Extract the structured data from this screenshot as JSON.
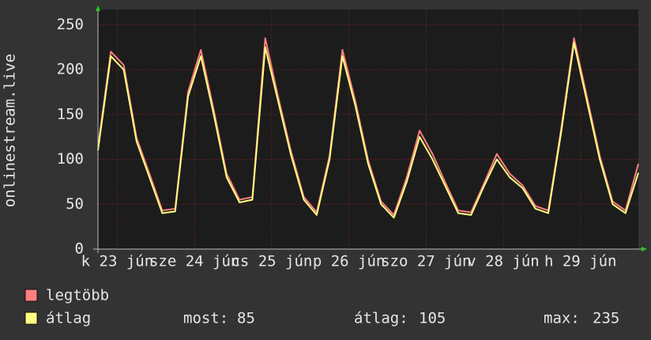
{
  "chart_data": {
    "type": "line",
    "ylabel": "onlinestream.live",
    "x": [
      0,
      4,
      8,
      12,
      16,
      20,
      24,
      28,
      32,
      36,
      40,
      44,
      48,
      52,
      56,
      60,
      64,
      68,
      72,
      76,
      80,
      84,
      88,
      92,
      96,
      100,
      104,
      108,
      112,
      116,
      120,
      124,
      128,
      132,
      136,
      140,
      144,
      148,
      152,
      156,
      160,
      164,
      168
    ],
    "xlim": [
      0,
      168
    ],
    "xticks": [
      {
        "value": 6,
        "label": "k 23 jún"
      },
      {
        "value": 30,
        "label": "sze 24 jún"
      },
      {
        "value": 54,
        "label": "cs 25 jún"
      },
      {
        "value": 78,
        "label": "p 26 jún"
      },
      {
        "value": 102,
        "label": "szo 27 jún"
      },
      {
        "value": 126,
        "label": "v 28 jún"
      },
      {
        "value": 150,
        "label": "h 29 jún"
      }
    ],
    "ylim": [
      0,
      267
    ],
    "yticks": [
      0,
      50,
      100,
      150,
      200,
      250
    ],
    "grid": true,
    "series": [
      {
        "name": "legtöbb",
        "color": "#ff7f7f",
        "values": [
          114,
          220,
          205,
          124,
          84,
          43,
          45,
          175,
          222,
          155,
          84,
          55,
          58,
          235,
          170,
          109,
          58,
          41,
          104,
          222,
          165,
          99,
          53,
          38,
          80,
          132,
          106,
          74,
          43,
          41,
          73,
          106,
          84,
          71,
          48,
          43,
          134,
          235,
          170,
          104,
          53,
          43,
          95
        ]
      },
      {
        "name": "átlag",
        "color": "#ffff80",
        "values": [
          110,
          215,
          200,
          120,
          80,
          40,
          42,
          170,
          215,
          150,
          80,
          52,
          55,
          225,
          165,
          105,
          55,
          38,
          100,
          215,
          160,
          95,
          50,
          35,
          75,
          125,
          100,
          70,
          40,
          38,
          70,
          100,
          80,
          68,
          45,
          40,
          130,
          230,
          165,
          100,
          50,
          40,
          85
        ]
      }
    ],
    "stats": [
      {
        "label": "most:",
        "value": 85
      },
      {
        "label": "átlag:",
        "value": 105
      },
      {
        "label": "max:",
        "value": 235
      }
    ]
  }
}
